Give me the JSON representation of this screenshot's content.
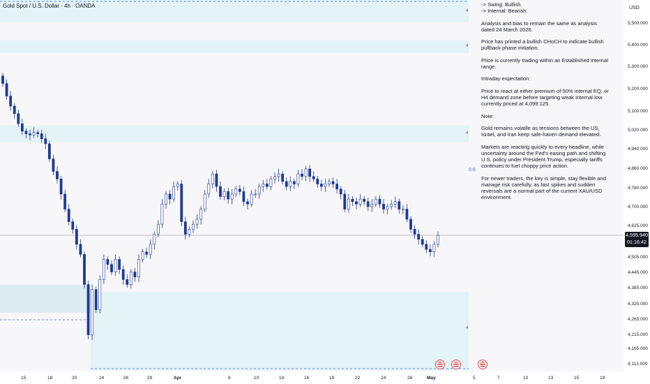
{
  "legend": {
    "symbol": "Gold Spot / U.S. Dollar · 4h · OANDA"
  },
  "price_axis": {
    "currency": "USD",
    "labels": [
      "5,500.000",
      "5,400.000",
      "5,300.000",
      "5,200.000",
      "5,100.000",
      "5,020.000",
      "4,940.000",
      "4,860.000",
      "4,780.000",
      "4,700.000",
      "4,625.000",
      "4,505.000",
      "4,445.000",
      "4,385.000",
      "4,325.000",
      "4,265.000",
      "4,215.000",
      "4,165.000",
      "4,113.000"
    ],
    "current_price": "4,595.940",
    "countdown": "01:16:42"
  },
  "time_axis": {
    "labels": [
      "15",
      "18",
      "20",
      "24",
      "26",
      "29",
      "Apr",
      "8",
      "10",
      "14",
      "16",
      "19",
      "22",
      "24",
      "28",
      "May",
      "5",
      "7",
      "10",
      "13",
      "15",
      "19"
    ]
  },
  "notes": [
    "-> Swing:  Bullish.\n-> Internal:  Bearish.",
    "Analysis and bias to remain the same as analysis dated 24 March 2026.",
    "Price has printed a bullish CHoCH to indicate bullish pullback phase initiation.",
    "Price is currently trading within an Established internal range.",
    "Intraday expectation:",
    "Price to react at either premium of 50% internal EQ, or H4 demand zone before targeting weak internal low currently priced at 4,099.125.",
    "Note:",
    "Gold remains volatile as tensions between the US, Israel, and Iran keep safe-haven demand elevated.",
    "Markets are reacting quickly to every headline, while uncertainty around the Fed's easing path and shifting U.S. policy under President Trump, especially tariffs continues to fuel choppy price action.",
    "For newer traders, the key is simple, stay flexible and manage risk carefully, as fast spikes and sudden reversals are a normal part of the current XAU/USD environment."
  ],
  "fib_label": "0.5",
  "zone_marker": "4",
  "colors": {
    "candle": "#1f3a93",
    "zone": "#e3f3f6",
    "accent": "#2962ff",
    "price_line": "#131722"
  },
  "chart_data": {
    "type": "candlestick",
    "timeframe": "4h",
    "last_price": 4595.94,
    "closes": [
      5200,
      5150,
      5110,
      5080,
      5040,
      5010,
      5000,
      4995,
      5005,
      5000,
      4980,
      4960,
      4900,
      4850,
      4820,
      4760,
      4700,
      4650,
      4620,
      4560,
      4520,
      4400,
      4200,
      4380,
      4300,
      4420,
      4500,
      4480,
      4450,
      4500,
      4460,
      4420,
      4400,
      4450,
      4430,
      4500,
      4530,
      4520,
      4560,
      4600,
      4640,
      4720,
      4760,
      4740,
      4790,
      4800,
      4650,
      4600,
      4620,
      4640,
      4660,
      4700,
      4760,
      4800,
      4840,
      4790,
      4750,
      4770,
      4740,
      4760,
      4780,
      4770,
      4730,
      4720,
      4760,
      4760,
      4790,
      4800,
      4790,
      4820,
      4830,
      4840,
      4810,
      4790,
      4810,
      4800,
      4840,
      4830,
      4860,
      4830,
      4820,
      4800,
      4790,
      4800,
      4810,
      4800,
      4780,
      4760,
      4700,
      4740,
      4730,
      4720,
      4740,
      4730,
      4710,
      4720,
      4740,
      4720,
      4700,
      4710,
      4720,
      4730,
      4700,
      4700,
      4660,
      4620,
      4600,
      4580,
      4560,
      4540,
      4530,
      4560,
      4596
    ]
  }
}
